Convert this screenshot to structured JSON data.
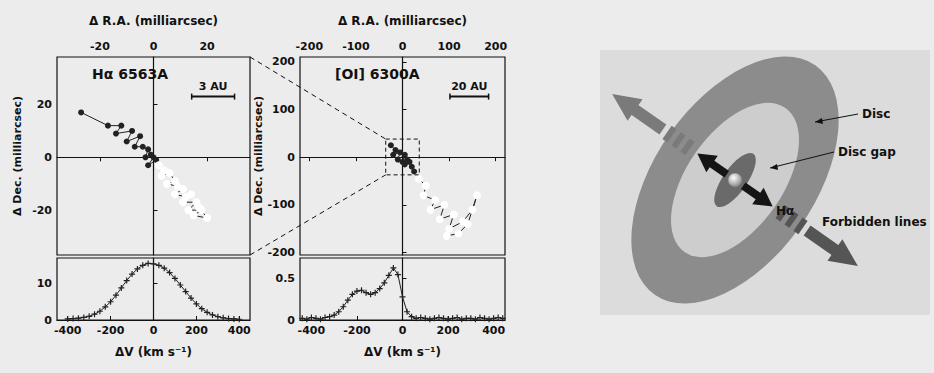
{
  "chart_data": [
    {
      "type": "line",
      "title": "Hα 6563A",
      "x_label": "Δ R.A. (milliarcsec)",
      "y_label": "Δ Dec. (milliarcsec)",
      "xlim": [
        -36,
        36
      ],
      "xticks": [
        -20,
        0,
        20
      ],
      "ylim": [
        -37,
        38
      ],
      "yticks": [
        -20,
        0,
        20
      ],
      "annotation": {
        "text": "3 AU",
        "length": 16
      },
      "series": [
        {
          "marker": "circle",
          "color": "#222222",
          "x": [
            -27,
            -17,
            -12,
            -14,
            -8,
            -10,
            -5,
            -7,
            -4,
            -2,
            -3,
            -1,
            0,
            -2,
            1
          ],
          "values": [
            17,
            12,
            12,
            9,
            10,
            6,
            8,
            4,
            4,
            3,
            0,
            1,
            0,
            -3,
            -1
          ]
        },
        {
          "marker": "open_circle",
          "color": "#222222",
          "x": [
            2,
            4,
            3,
            6,
            8,
            5,
            9,
            11,
            8,
            12,
            14,
            11,
            16,
            13,
            18,
            15,
            20,
            17
          ],
          "values": [
            -3,
            -5,
            -7,
            -6,
            -9,
            -10,
            -11,
            -12,
            -14,
            -15,
            -14,
            -17,
            -17,
            -20,
            -20,
            -22,
            -23,
            -19
          ]
        }
      ]
    },
    {
      "type": "line",
      "x_label": "ΔV (km s⁻¹)",
      "xlim": [
        -450,
        450
      ],
      "xticks": [
        -400,
        -200,
        0,
        200,
        400
      ],
      "ylim": [
        0,
        17
      ],
      "yticks": [
        0,
        10
      ],
      "marker": "plus",
      "color": "#222222",
      "x": [
        -400,
        -375,
        -350,
        -325,
        -300,
        -275,
        -250,
        -225,
        -200,
        -175,
        -150,
        -125,
        -100,
        -75,
        -50,
        -25,
        0,
        25,
        50,
        75,
        100,
        125,
        150,
        175,
        200,
        225,
        250,
        275,
        300,
        325,
        350,
        375,
        400
      ],
      "values": [
        0.3,
        0.4,
        0.5,
        0.7,
        1,
        1.6,
        2.4,
        3.6,
        5,
        6.8,
        8.8,
        10.8,
        12.6,
        14,
        15,
        15.5,
        15.4,
        15,
        14.2,
        13,
        11.4,
        9.6,
        7.8,
        6,
        4.4,
        3.1,
        2.1,
        1.4,
        0.9,
        0.6,
        0.4,
        0.3,
        0.2
      ]
    },
    {
      "type": "line",
      "title": "[OI] 6300A",
      "x_label": "Δ R.A. (milliarcsec)",
      "y_label": "Δ Dec. (milliarcsec)",
      "xlim": [
        -220,
        220
      ],
      "xticks": [
        -200,
        -100,
        0,
        100,
        200
      ],
      "ylim": [
        -205,
        210
      ],
      "yticks": [
        -200,
        -100,
        0,
        100,
        200
      ],
      "annotation": {
        "text": "20 AU",
        "length": 83
      },
      "series": [
        {
          "marker": "circle",
          "color": "#222222",
          "x": [
            -25,
            -15,
            -20,
            -5,
            -10,
            5,
            0,
            10,
            5,
            15,
            20,
            25
          ],
          "values": [
            25,
            15,
            5,
            10,
            -5,
            5,
            -10,
            -5,
            -15,
            -10,
            -20,
            -30
          ]
        },
        {
          "marker": "open_circle",
          "color": "#222222",
          "x": [
            35,
            50,
            45,
            70,
            60,
            90,
            80,
            110,
            100,
            130,
            150,
            160,
            140,
            120,
            95
          ],
          "values": [
            -45,
            -60,
            -80,
            -90,
            -110,
            -100,
            -130,
            -120,
            -150,
            -135,
            -110,
            -80,
            -140,
            -160,
            -165
          ]
        }
      ]
    },
    {
      "type": "line",
      "x_label": "ΔV (km s⁻¹)",
      "xlim": [
        -450,
        450
      ],
      "xticks": [
        -400,
        -200,
        0,
        200,
        400
      ],
      "ylim": [
        0,
        0.75
      ],
      "yticks": [
        0,
        0.5
      ],
      "marker": "plus",
      "color": "#222222",
      "x": [
        -440,
        -420,
        -400,
        -380,
        -360,
        -340,
        -320,
        -300,
        -280,
        -260,
        -240,
        -220,
        -200,
        -180,
        -160,
        -140,
        -120,
        -100,
        -80,
        -60,
        -40,
        -20,
        0,
        20,
        40,
        60,
        80,
        100,
        120,
        140,
        160,
        180,
        200,
        220,
        240,
        260,
        280,
        300,
        320,
        340,
        360,
        380,
        400,
        420,
        440
      ],
      "values": [
        0.02,
        0.01,
        0.03,
        0.02,
        0.01,
        0.03,
        0.04,
        0.06,
        0.1,
        0.16,
        0.24,
        0.31,
        0.35,
        0.36,
        0.33,
        0.31,
        0.33,
        0.38,
        0.45,
        0.54,
        0.63,
        0.55,
        0.28,
        0.1,
        0.04,
        0.02,
        0.03,
        0.02,
        0.01,
        0.02,
        0.03,
        0.02,
        0.01,
        0.02,
        0.03,
        0.01,
        0.02,
        0.02,
        0.01,
        0.03,
        0.02,
        0.01,
        0.02,
        0.03,
        0.02
      ]
    }
  ],
  "diagram": {
    "labels": {
      "disc": "Disc",
      "gap": "Disc gap",
      "halpha": "Hα",
      "forbidden": "Forbidden lines"
    }
  }
}
